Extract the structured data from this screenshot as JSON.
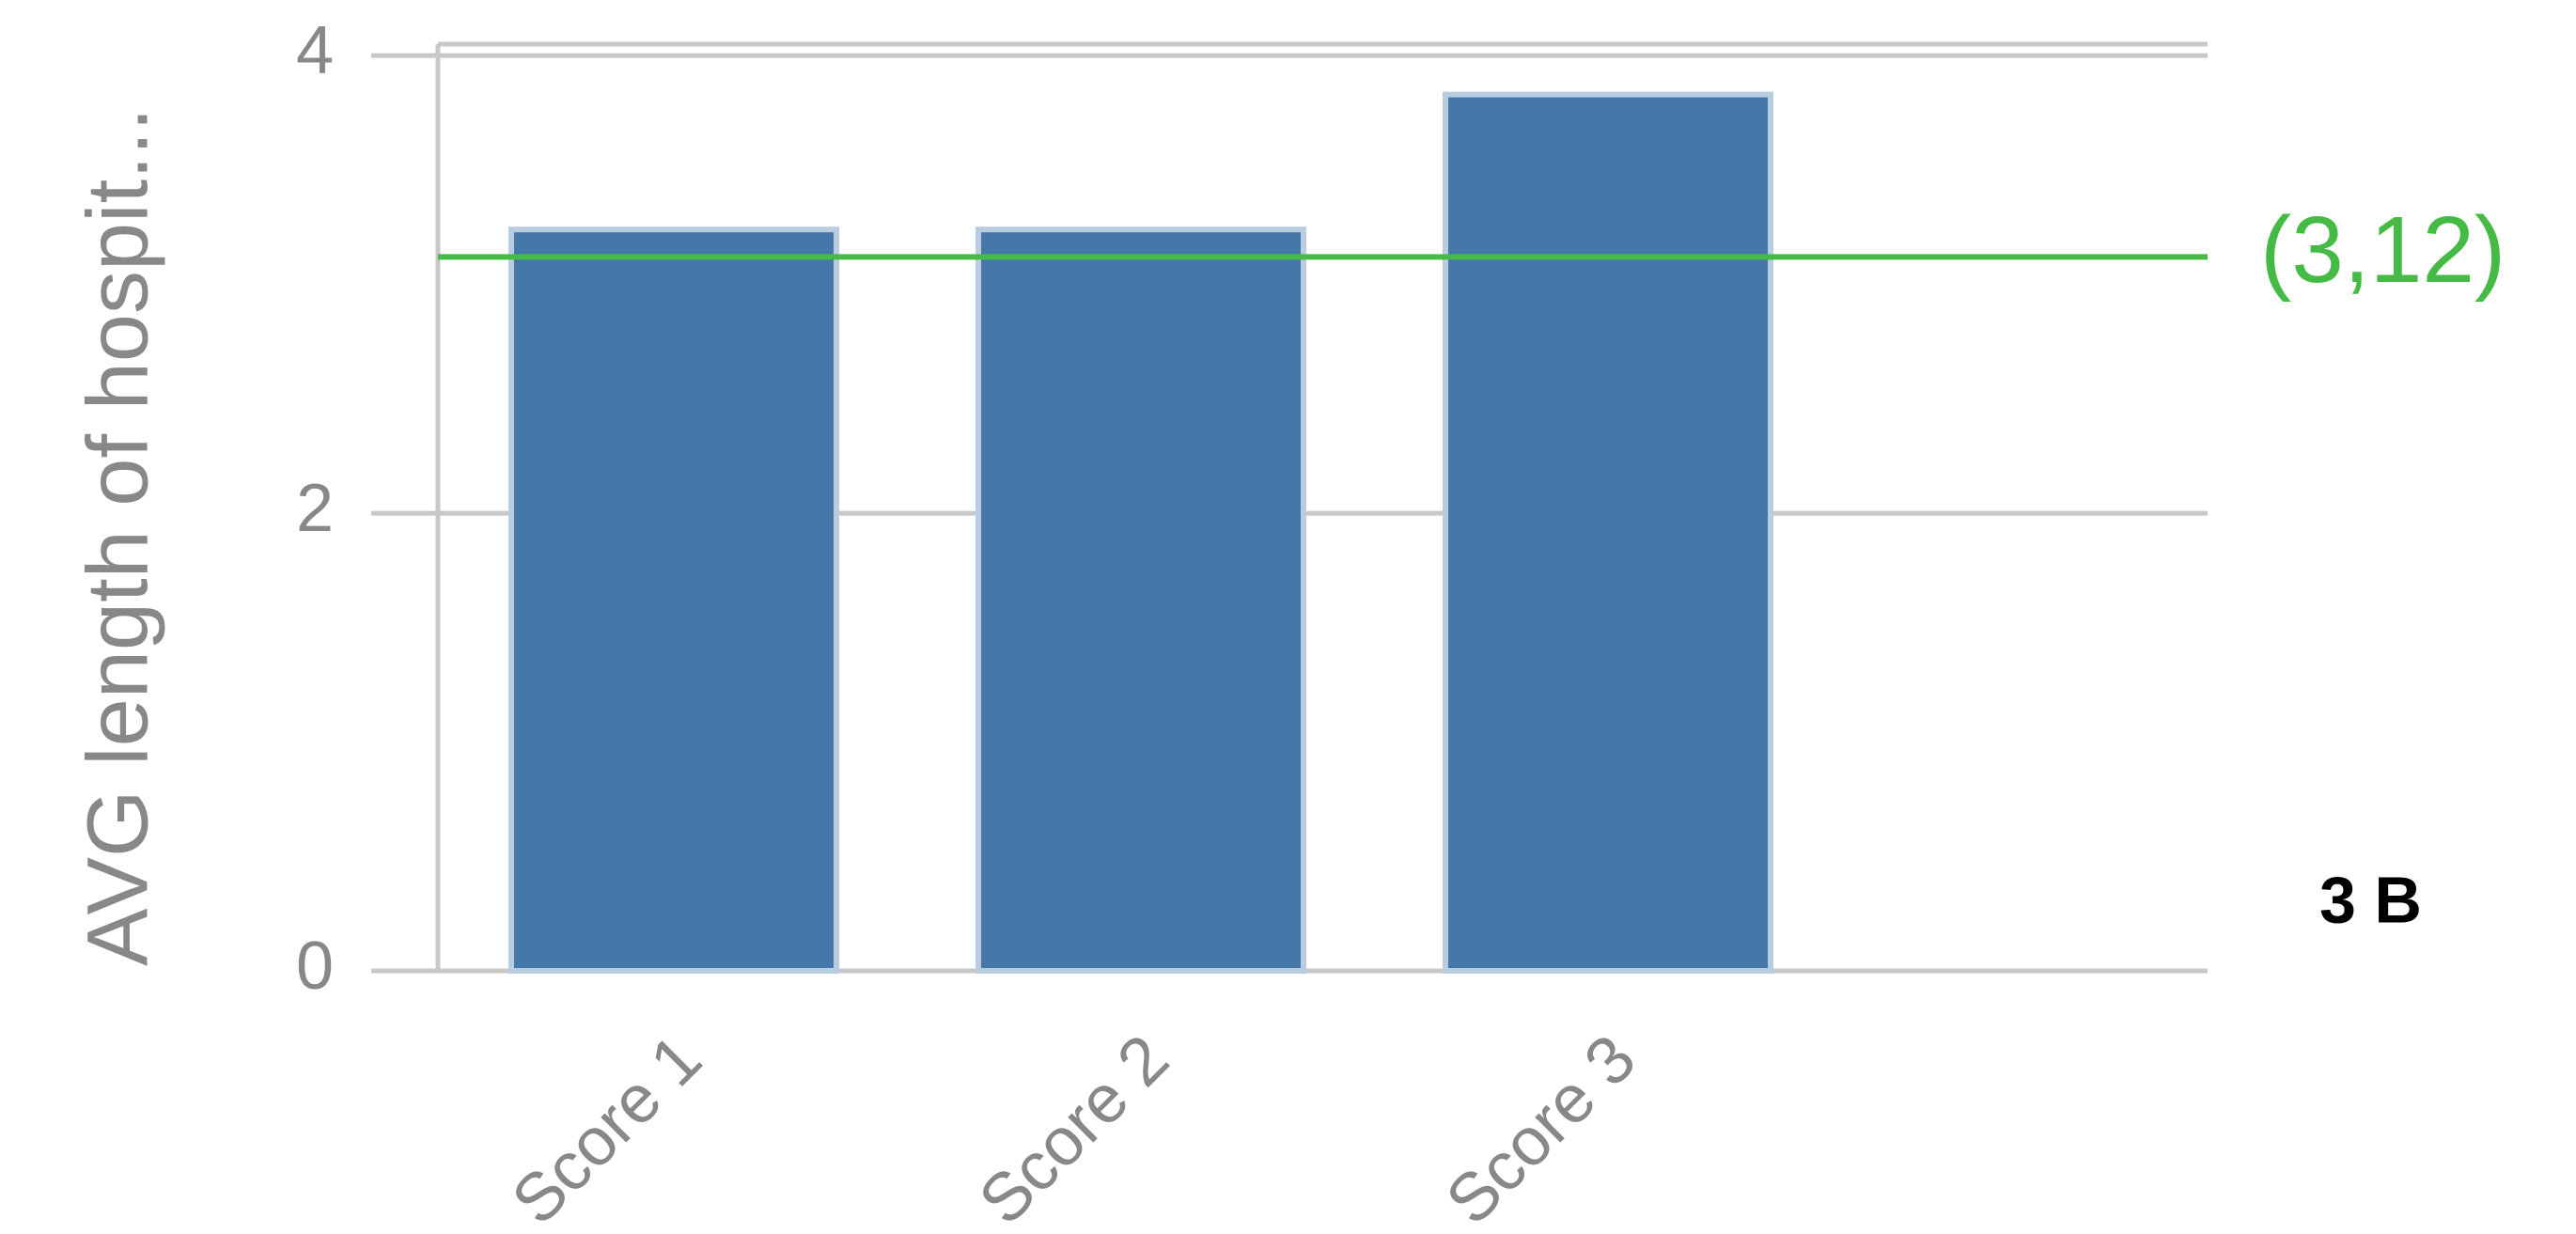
{
  "chart_data": {
    "type": "bar",
    "y_axis_label": "AVG length of hospit...",
    "categories": [
      "Score 1",
      "Score 2",
      "Score 3"
    ],
    "values": [
      3.24,
      3.24,
      3.83
    ],
    "color": "#4577a9",
    "ylim": [
      0,
      4.05
    ],
    "yticks": [
      0,
      2,
      4
    ],
    "grid": true,
    "reference_line": {
      "value": 3.12,
      "label": "(3,12)",
      "color": "#45bb45"
    },
    "annotation": "3 B"
  }
}
